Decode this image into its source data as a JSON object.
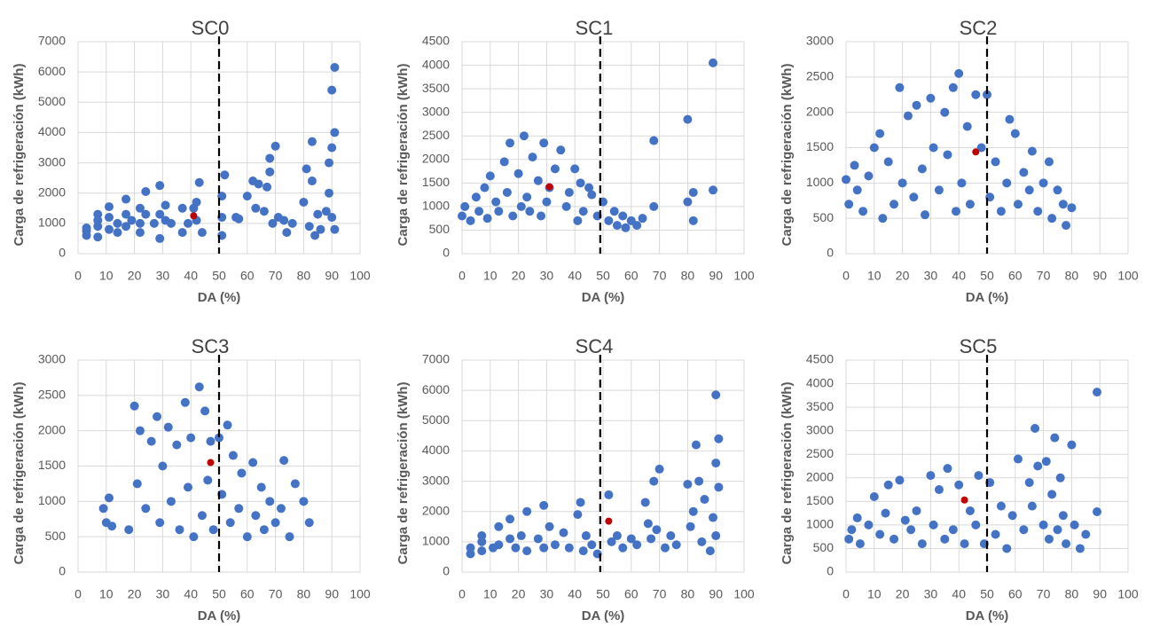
{
  "chart_data": [
    {
      "type": "scatter",
      "title": "SC0",
      "x_label": "DA (%)",
      "y_label": "Carga de refrigeración (kWh)",
      "color": "#4472c4",
      "x": [
        3,
        3,
        3,
        7,
        7,
        7,
        7,
        11,
        11,
        11,
        14,
        14,
        17,
        17,
        17,
        19,
        22,
        22,
        22,
        24,
        24,
        27,
        29,
        29,
        29,
        31,
        31,
        33,
        37,
        37,
        39,
        41,
        42,
        42,
        43,
        44,
        51,
        51,
        51,
        52,
        56,
        57,
        60,
        62,
        63,
        64,
        66,
        67,
        68,
        68,
        69,
        70,
        71,
        73,
        74,
        76,
        80,
        81,
        82,
        83,
        83,
        84,
        85,
        86,
        88,
        89,
        89,
        90,
        90,
        90,
        91,
        91,
        91
      ],
      "values": [
        600,
        750,
        850,
        550,
        900,
        1100,
        1300,
        800,
        1200,
        1550,
        700,
        1000,
        900,
        1300,
        1800,
        1100,
        700,
        1000,
        1500,
        1300,
        2050,
        1000,
        500,
        1300,
        2250,
        1100,
        1600,
        1000,
        700,
        1500,
        1000,
        1500,
        1100,
        1700,
        2350,
        700,
        600,
        1200,
        1900,
        2600,
        1200,
        1150,
        1900,
        2400,
        1500,
        2300,
        1400,
        2200,
        2700,
        3150,
        1000,
        3550,
        1200,
        1100,
        700,
        1000,
        1700,
        2800,
        900,
        2400,
        3700,
        600,
        1300,
        800,
        1400,
        2000,
        3000,
        1200,
        3500,
        5400,
        800,
        4000,
        6150
      ],
      "highlight": {
        "x": 41,
        "y": 1250,
        "color": "#c00000"
      },
      "threshold": 50,
      "xlim": [
        0,
        100
      ],
      "xticks": [
        0,
        10,
        20,
        30,
        40,
        50,
        60,
        70,
        80,
        90,
        100
      ],
      "ylim": [
        0,
        7000
      ],
      "yticks": [
        0,
        1000,
        2000,
        3000,
        4000,
        5000,
        6000,
        7000
      ],
      "grid": true
    },
    {
      "type": "scatter",
      "title": "SC1",
      "x_label": "DA (%)",
      "y_label": "Carga de refrigeración (kWh)",
      "color": "#4472c4",
      "x": [
        0,
        1,
        3,
        5,
        6,
        8,
        9,
        10,
        12,
        13,
        15,
        16,
        17,
        18,
        20,
        21,
        22,
        23,
        24,
        25,
        27,
        28,
        29,
        30,
        31,
        33,
        35,
        37,
        38,
        40,
        41,
        42,
        43,
        45,
        46,
        48,
        50,
        52,
        54,
        55,
        57,
        58,
        60,
        62,
        64,
        68,
        68,
        80,
        80,
        82,
        82,
        89,
        89
      ],
      "values": [
        800,
        1000,
        700,
        1200,
        900,
        1400,
        750,
        1650,
        1100,
        900,
        1950,
        1300,
        2350,
        800,
        1700,
        1000,
        2500,
        1200,
        900,
        2050,
        1550,
        800,
        2350,
        1100,
        1400,
        1800,
        2200,
        1000,
        1300,
        1800,
        700,
        1500,
        900,
        1400,
        1250,
        800,
        1100,
        700,
        900,
        600,
        800,
        550,
        700,
        600,
        750,
        2400,
        1000,
        2850,
        1100,
        1300,
        700,
        4050,
        1350
      ],
      "highlight": {
        "x": 31,
        "y": 1420,
        "color": "#c00000"
      },
      "threshold": 49,
      "xlim": [
        0,
        100
      ],
      "xticks": [
        0,
        10,
        20,
        30,
        40,
        50,
        60,
        70,
        80,
        90,
        100
      ],
      "ylim": [
        0,
        4500
      ],
      "yticks": [
        0,
        500,
        1000,
        1500,
        2000,
        2500,
        3000,
        3500,
        4000,
        4500
      ],
      "grid": true
    },
    {
      "type": "scatter",
      "title": "SC2",
      "x_label": "DA (%)",
      "y_label": "Carga de refrigeración (kWh)",
      "color": "#4472c4",
      "x": [
        0,
        1,
        3,
        4,
        6,
        8,
        10,
        12,
        13,
        15,
        17,
        19,
        20,
        22,
        24,
        25,
        27,
        28,
        30,
        31,
        33,
        35,
        36,
        38,
        39,
        40,
        41,
        43,
        44,
        46,
        48,
        50,
        51,
        53,
        55,
        57,
        58,
        60,
        61,
        63,
        65,
        66,
        68,
        70,
        72,
        73,
        75,
        77,
        78,
        80
      ],
      "values": [
        1050,
        700,
        1250,
        900,
        600,
        1100,
        1500,
        1700,
        500,
        1300,
        700,
        2350,
        1000,
        1950,
        800,
        2100,
        1200,
        550,
        2200,
        1500,
        900,
        2000,
        1400,
        2350,
        600,
        2550,
        1000,
        1800,
        700,
        2250,
        1500,
        2250,
        800,
        1300,
        600,
        1000,
        1900,
        1700,
        700,
        1150,
        900,
        1450,
        600,
        1000,
        1300,
        500,
        900,
        700,
        400,
        650
      ],
      "highlight": {
        "x": 46,
        "y": 1440,
        "color": "#c00000"
      },
      "threshold": 50,
      "xlim": [
        0,
        100
      ],
      "xticks": [
        0,
        10,
        20,
        30,
        40,
        50,
        60,
        70,
        80,
        90,
        100
      ],
      "ylim": [
        0,
        3000
      ],
      "yticks": [
        0,
        500,
        1000,
        1500,
        2000,
        2500,
        3000
      ],
      "grid": true
    },
    {
      "type": "scatter",
      "title": "SC3",
      "x_label": "DA (%)",
      "y_label": "Carga de refrigeración (kWh)",
      "color": "#4472c4",
      "x": [
        9,
        10,
        11,
        12,
        18,
        20,
        21,
        22,
        24,
        26,
        28,
        29,
        30,
        32,
        33,
        35,
        36,
        38,
        39,
        40,
        41,
        43,
        44,
        45,
        46,
        47,
        48,
        50,
        51,
        53,
        54,
        55,
        57,
        58,
        60,
        62,
        63,
        65,
        66,
        68,
        70,
        72,
        73,
        75,
        77,
        80,
        82
      ],
      "values": [
        900,
        700,
        1050,
        650,
        600,
        2350,
        1250,
        2000,
        900,
        1850,
        2200,
        700,
        1500,
        2050,
        1000,
        1800,
        600,
        2400,
        1200,
        1900,
        500,
        2620,
        800,
        2280,
        1300,
        1850,
        600,
        1900,
        1100,
        2080,
        700,
        1650,
        900,
        1400,
        500,
        1550,
        800,
        1200,
        600,
        1000,
        700,
        900,
        1580,
        500,
        1250,
        1000,
        700
      ],
      "highlight": {
        "x": 47,
        "y": 1550,
        "color": "#c00000"
      },
      "threshold": 50,
      "xlim": [
        0,
        100
      ],
      "xticks": [
        0,
        10,
        20,
        30,
        40,
        50,
        60,
        70,
        80,
        90,
        100
      ],
      "ylim": [
        0,
        3000
      ],
      "yticks": [
        0,
        500,
        1000,
        1500,
        2000,
        2500,
        3000
      ],
      "grid": true
    },
    {
      "type": "scatter",
      "title": "SC4",
      "x_label": "DA (%)",
      "y_label": "Carga de refrigeración (kWh)",
      "color": "#4472c4",
      "x": [
        3,
        3,
        7,
        7,
        7,
        11,
        13,
        13,
        17,
        17,
        19,
        21,
        23,
        23,
        27,
        29,
        29,
        31,
        33,
        36,
        38,
        41,
        42,
        43,
        44,
        46,
        48,
        52,
        53,
        55,
        57,
        60,
        62,
        65,
        66,
        67,
        68,
        69,
        70,
        72,
        74,
        76,
        80,
        81,
        82,
        83,
        84,
        85,
        86,
        88,
        89,
        90,
        90,
        90,
        91,
        91
      ],
      "values": [
        600,
        800,
        700,
        1000,
        1200,
        800,
        1500,
        900,
        1100,
        1750,
        800,
        1200,
        2000,
        700,
        1100,
        2200,
        800,
        1500,
        900,
        1300,
        800,
        1900,
        2300,
        700,
        1200,
        900,
        600,
        2550,
        1000,
        1200,
        800,
        1100,
        900,
        2300,
        1600,
        1100,
        3000,
        1400,
        3400,
        800,
        1200,
        900,
        2900,
        1500,
        2000,
        4200,
        3000,
        1000,
        2400,
        700,
        1800,
        3600,
        5850,
        1200,
        2800,
        4400
      ],
      "highlight": {
        "x": 52,
        "y": 1680,
        "color": "#c00000"
      },
      "threshold": 49,
      "xlim": [
        0,
        100
      ],
      "xticks": [
        0,
        10,
        20,
        30,
        40,
        50,
        60,
        70,
        80,
        90,
        100
      ],
      "ylim": [
        0,
        7000
      ],
      "yticks": [
        0,
        1000,
        2000,
        3000,
        4000,
        5000,
        6000,
        7000
      ],
      "grid": true
    },
    {
      "type": "scatter",
      "title": "SC5",
      "x_label": "DA (%)",
      "y_label": "Carga de refrigeración (kWh)",
      "color": "#4472c4",
      "x": [
        1,
        2,
        4,
        5,
        8,
        10,
        12,
        14,
        15,
        17,
        19,
        21,
        23,
        25,
        27,
        30,
        31,
        33,
        35,
        36,
        38,
        40,
        42,
        44,
        46,
        47,
        49,
        51,
        53,
        55,
        57,
        59,
        61,
        63,
        65,
        66,
        67,
        68,
        70,
        71,
        72,
        73,
        74,
        75,
        76,
        77,
        78,
        80,
        81,
        83,
        85,
        89,
        89
      ],
      "values": [
        700,
        900,
        1150,
        600,
        1000,
        1600,
        800,
        1250,
        1850,
        700,
        1950,
        1100,
        900,
        1300,
        600,
        2050,
        1000,
        1750,
        700,
        2200,
        900,
        1850,
        600,
        1300,
        1000,
        2050,
        600,
        1900,
        800,
        1400,
        500,
        1200,
        2400,
        900,
        1900,
        1400,
        3050,
        2250,
        1000,
        2350,
        700,
        1650,
        2850,
        900,
        2000,
        1200,
        600,
        2700,
        1000,
        500,
        800,
        1280,
        3820
      ],
      "highlight": {
        "x": 42,
        "y": 1530,
        "color": "#c00000"
      },
      "threshold": 50,
      "xlim": [
        0,
        100
      ],
      "xticks": [
        0,
        10,
        20,
        30,
        40,
        50,
        60,
        70,
        80,
        90,
        100
      ],
      "ylim": [
        0,
        4500
      ],
      "yticks": [
        0,
        500,
        1000,
        1500,
        2000,
        2500,
        3000,
        3500,
        4000,
        4500
      ],
      "grid": true
    }
  ]
}
